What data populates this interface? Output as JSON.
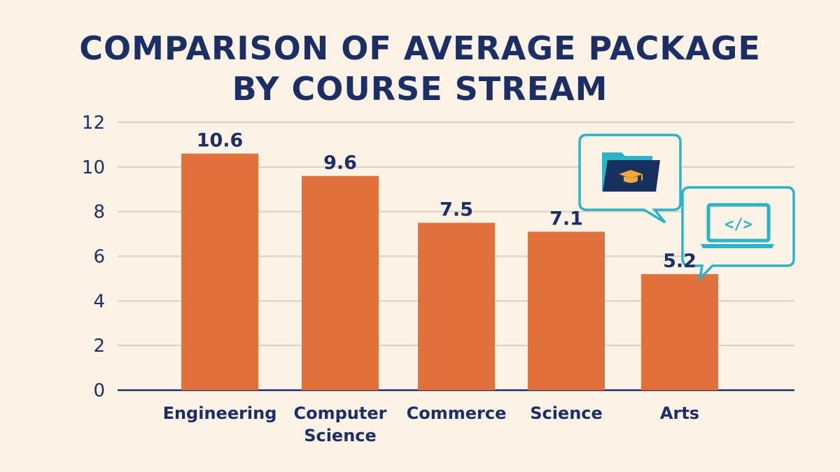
{
  "chart_data": {
    "type": "bar",
    "title_lines": [
      "COMPARISON OF AVERAGE PACKAGE",
      "BY COURSE STREAM"
    ],
    "categories": [
      "Engineering",
      "Computer Science",
      "Commerce",
      "Science",
      "Arts"
    ],
    "category_lines": [
      [
        "Engineering"
      ],
      [
        "Computer",
        "Science"
      ],
      [
        "Commerce"
      ],
      [
        "Science"
      ],
      [
        "Arts"
      ]
    ],
    "values": [
      10.6,
      9.6,
      7.5,
      7.1,
      5.2
    ],
    "data_labels": [
      "10.6",
      "9.6",
      "7.5",
      "7.1",
      "5.2"
    ],
    "xlabel": "",
    "ylabel": "",
    "ylim": [
      0,
      12
    ],
    "yticks": [
      "0",
      "2",
      "4",
      "6",
      "8",
      "10",
      "12"
    ],
    "grid": true,
    "colors": {
      "bar": "#e2703a",
      "text": "#1b2f66",
      "grid": "#d9d0c4",
      "axis": "#1b2f66",
      "accent": "#2bb3c8",
      "cap": "#f2a83a"
    },
    "icons": [
      "folder-graduation-cap-icon",
      "laptop-code-icon"
    ]
  }
}
